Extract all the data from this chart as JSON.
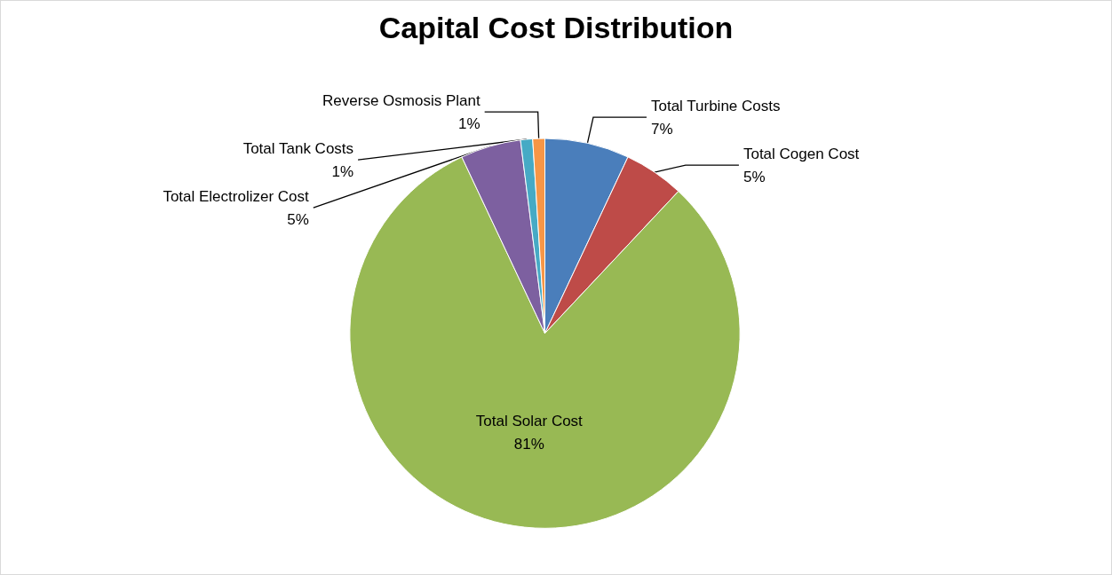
{
  "chart_data": {
    "type": "pie",
    "title": "Capital Cost Distribution",
    "categories": [
      "Total Turbine Costs",
      "Total Cogen Cost",
      "Total Solar Cost",
      "Total Electrolizer Cost",
      "Total Tank Costs",
      "Reverse Osmosis Plant"
    ],
    "values": [
      7,
      5,
      81,
      5,
      1,
      1
    ],
    "value_labels": [
      "7%",
      "5%",
      "81%",
      "5%",
      "1%",
      "1%"
    ],
    "colors": [
      "#4a7ebb",
      "#be4b48",
      "#98b954",
      "#7d60a0",
      "#46aac5",
      "#f79646"
    ]
  }
}
